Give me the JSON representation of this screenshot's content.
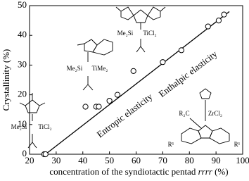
{
  "chart_data": {
    "type": "scatter",
    "x_label": [
      "concentration of the syndiotactic pentad ",
      "rrrr",
      " (%)"
    ],
    "y_label": "Crystallinity (%)",
    "x": [
      25.5,
      26,
      41,
      45,
      46,
      50,
      53,
      59,
      70,
      77,
      87,
      91,
      93
    ],
    "values": [
      0,
      0,
      16,
      16,
      16,
      18,
      20,
      28,
      31,
      35,
      43,
      45,
      47
    ],
    "color": "#000000",
    "line": {
      "x": [
        26,
        95
      ],
      "values": [
        0,
        48
      ]
    },
    "xlim": [
      20,
      100
    ],
    "xticks": [
      20,
      30,
      40,
      50,
      60,
      70,
      80,
      90,
      100
    ],
    "ylim": [
      0,
      50
    ],
    "yticks": [
      0,
      10,
      20,
      30,
      40,
      50
    ],
    "annotations": [
      "Entropic elasticity",
      "Enthalpic elasticity"
    ],
    "structure_labels": [
      "Me₂Si",
      "TiCl₂",
      "Me₂Si",
      "TiMe₂",
      "Me₂Si",
      "TiCl₂",
      "R₂C",
      "ZrCl₂",
      "R¹",
      "R¹"
    ]
  }
}
